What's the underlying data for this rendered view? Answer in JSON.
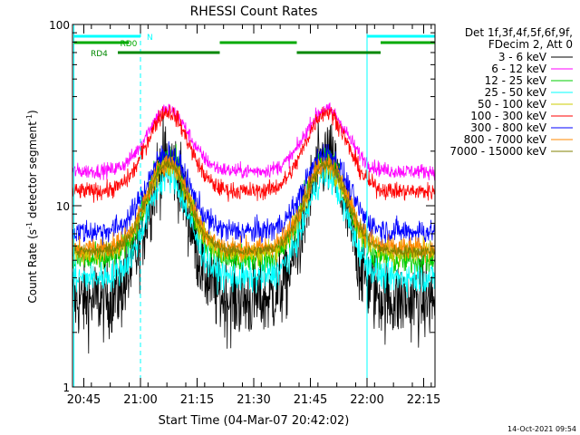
{
  "chart_data": {
    "type": "line",
    "title": "RHESSI Count Rates",
    "xlabel": "Start Time (04-Mar-07 20:42:02)",
    "ylabel_main": "Count Rate (s",
    "ylabel_sup1": "-1",
    "ylabel_mid": " detector segment",
    "ylabel_sup2": "-1",
    "ylabel_end": ")",
    "y_scale": "log",
    "ylim": [
      1,
      100
    ],
    "xlim_minutes": [
      20.7,
      22.3
    ],
    "x_ticks": [
      {
        "label": "20:45",
        "value": 20.75
      },
      {
        "label": "21:00",
        "value": 21.0
      },
      {
        "label": "21:15",
        "value": 21.25
      },
      {
        "label": "21:30",
        "value": 21.5
      },
      {
        "label": "21:45",
        "value": 21.75
      },
      {
        "label": "22:00",
        "value": 22.0
      },
      {
        "label": "22:15",
        "value": 22.25
      }
    ],
    "y_ticks": [
      {
        "label": "1",
        "value": 1
      },
      {
        "label": "10",
        "value": 10
      },
      {
        "label": "100",
        "value": 100
      }
    ],
    "legend": {
      "placement": "top-right",
      "header": [
        "Det 1f,3f,4f,5f,6f,9f,",
        "FDecim 2, Att 0"
      ],
      "entries": [
        {
          "label": "3 - 6 keV",
          "color": "#000000"
        },
        {
          "label": "6 - 12 keV",
          "color": "#ff00ff"
        },
        {
          "label": "12 - 25 keV",
          "color": "#00cc00"
        },
        {
          "label": "25 - 50 keV",
          "color": "#00ffff"
        },
        {
          "label": "50 - 100 keV",
          "color": "#cccc00"
        },
        {
          "label": "100 - 300 keV",
          "color": "#ff0000"
        },
        {
          "label": "300 - 800 keV",
          "color": "#0000ff"
        },
        {
          "label": "800 - 7000 keV",
          "color": "#ff8800"
        },
        {
          "label": "7000 - 15000 keV",
          "color": "#808000"
        }
      ]
    },
    "series": [
      {
        "name": "3 - 6 keV",
        "color": "#000000",
        "base": 3.0,
        "peak": 18,
        "noise": 0.32
      },
      {
        "name": "6 - 12 keV",
        "color": "#ff00ff",
        "base": 15.5,
        "peak": 34,
        "noise": 0.06
      },
      {
        "name": "12 - 25 keV",
        "color": "#00cc00",
        "base": 5.0,
        "peak": 18.5,
        "noise": 0.12
      },
      {
        "name": "25 - 50 keV",
        "color": "#00ffff",
        "base": 4.0,
        "peak": 14.5,
        "noise": 0.12
      },
      {
        "name": "50 - 100 keV",
        "color": "#cccc00",
        "base": 5.5,
        "peak": 17,
        "noise": 0.1
      },
      {
        "name": "100 - 300 keV",
        "color": "#ff0000",
        "base": 12.0,
        "peak": 33,
        "noise": 0.07
      },
      {
        "name": "300 - 800 keV",
        "color": "#0000ff",
        "base": 7.2,
        "peak": 19.5,
        "noise": 0.1
      },
      {
        "name": "800 - 7000 keV",
        "color": "#ff8800",
        "base": 5.8,
        "peak": 17.5,
        "noise": 0.09
      },
      {
        "name": "7000 - 15000 keV",
        "color": "#808000",
        "base": 5.6,
        "peak": 17,
        "noise": 0.05
      }
    ],
    "peaks_hours": [
      21.12,
      21.82
    ],
    "peak_width_hours": 0.13,
    "flags": [
      {
        "label": "N",
        "color": "#00ffff",
        "segments": [
          [
            20.706,
            21.0
          ],
          [
            22.0,
            22.3
          ]
        ]
      },
      {
        "label": "RD0",
        "color": "#00aa00",
        "segments": [
          [
            20.706,
            20.95
          ],
          [
            21.35,
            21.69
          ],
          [
            22.06,
            22.3
          ]
        ]
      },
      {
        "label": "RD4",
        "color": "#008800",
        "segments": [
          [
            20.9,
            21.35
          ],
          [
            21.69,
            22.06
          ]
        ]
      }
    ],
    "vertical_markers": [
      {
        "value": 20.706,
        "style": "solid",
        "color": "#00ffff"
      },
      {
        "value": 21.0,
        "style": "dashed",
        "color": "#00ffff"
      },
      {
        "value": 22.0,
        "style": "solid",
        "color": "#00ffff"
      },
      {
        "value": 22.3,
        "style": "dashed",
        "color": "#00ffff"
      }
    ],
    "timestamp": "14-Oct-2021 09:54"
  }
}
